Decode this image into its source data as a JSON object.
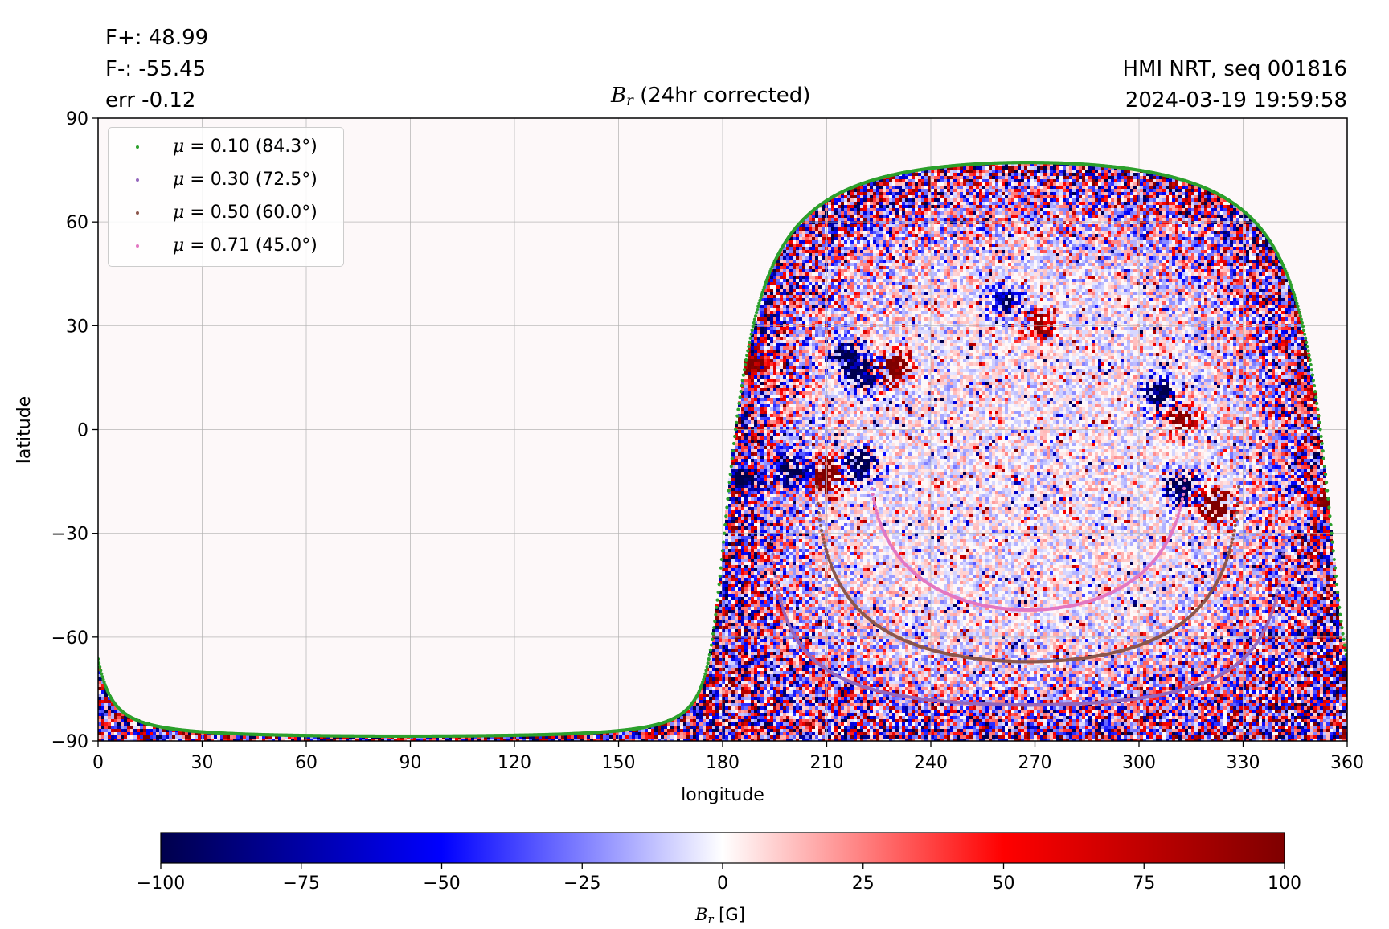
{
  "header": {
    "flux_pos": "F+: 48.99",
    "flux_neg": "F-: -55.45",
    "err": "err -0.12",
    "instrument": "HMI NRT, seq 001816",
    "datetime": "2024-03-19 19:59:58",
    "title_symbol": "B",
    "title_sub": "r",
    "title_rest": " (24hr corrected)"
  },
  "chart_data": {
    "type": "heatmap",
    "title": "B_r (24hr corrected)",
    "xlabel": "longitude",
    "ylabel": "latitude",
    "xlim": [
      0,
      360
    ],
    "ylim": [
      -90,
      90
    ],
    "xticks": [
      0,
      30,
      60,
      90,
      120,
      150,
      180,
      210,
      240,
      270,
      300,
      330,
      360
    ],
    "yticks": [
      -90,
      -60,
      -30,
      0,
      30,
      60,
      90
    ],
    "ytick_labels": [
      "−90",
      "−60",
      "−30",
      "0",
      "30",
      "60",
      "90"
    ],
    "grid": true,
    "colorbar": {
      "label_symbol": "B",
      "label_sub": "r",
      "label_unit": " [G]",
      "range": [
        -100,
        100
      ],
      "ticks": [
        -100,
        -75,
        -50,
        -25,
        0,
        25,
        50,
        75,
        100
      ],
      "tick_labels": [
        "−100",
        "−75",
        "−50",
        "−25",
        "0",
        "25",
        "50",
        "75",
        "100"
      ],
      "colormap": "seismic",
      "colors": [
        "#00004c",
        "#0000ff",
        "#ffffff",
        "#ff0000",
        "#7f0000"
      ]
    },
    "legend_placement": "upper-left",
    "series": [
      {
        "name": "μ = 0.10 (84.3°)",
        "mu": "0.10",
        "angle": "(84.3°)",
        "color": "#2ca02c",
        "angular_radius_deg": 84.3
      },
      {
        "name": "μ = 0.30 (72.5°)",
        "mu": "0.30",
        "angle": "(72.5°)",
        "color": "#9467bd",
        "angular_radius_deg": 72.5
      },
      {
        "name": "μ = 0.50 (60.0°)",
        "mu": "0.50",
        "angle": "(60.0°)",
        "color": "#8c564b",
        "angular_radius_deg": 60.0
      },
      {
        "name": "μ = 0.71 (45.0°)",
        "mu": "0.71",
        "angle": "(45.0°)",
        "color": "#e377c2",
        "angular_radius_deg": 45.0
      }
    ],
    "disk_center": {
      "longitude": 268,
      "latitude": -7.1
    },
    "active_regions": [
      {
        "lon": 216,
        "lat": 21,
        "polarity": "negative",
        "strength": 100
      },
      {
        "lon": 229,
        "lat": 18,
        "polarity": "positive",
        "strength": 100
      },
      {
        "lon": 220,
        "lat": 16,
        "polarity": "negative",
        "strength": 90
      },
      {
        "lon": 210,
        "lat": -13,
        "polarity": "positive",
        "strength": 100
      },
      {
        "lon": 220,
        "lat": -10,
        "polarity": "negative",
        "strength": 90
      },
      {
        "lon": 200,
        "lat": -12,
        "polarity": "negative",
        "strength": 80
      },
      {
        "lon": 322,
        "lat": -22,
        "polarity": "positive",
        "strength": 100
      },
      {
        "lon": 312,
        "lat": -17,
        "polarity": "negative",
        "strength": 90
      },
      {
        "lon": 306,
        "lat": 10,
        "polarity": "negative",
        "strength": 80
      },
      {
        "lon": 312,
        "lat": 3,
        "polarity": "positive",
        "strength": 70
      },
      {
        "lon": 262,
        "lat": 37,
        "polarity": "negative",
        "strength": 60
      },
      {
        "lon": 271,
        "lat": 30,
        "polarity": "positive",
        "strength": 70
      },
      {
        "lon": 186,
        "lat": -14,
        "polarity": "negative",
        "strength": 80
      },
      {
        "lon": 188,
        "lat": 19,
        "polarity": "positive",
        "strength": 80
      },
      {
        "lon": 355,
        "lat": -20,
        "polarity": "positive",
        "strength": 70
      },
      {
        "lon": 352,
        "lat": 10,
        "polarity": "positive",
        "strength": 60
      }
    ]
  }
}
